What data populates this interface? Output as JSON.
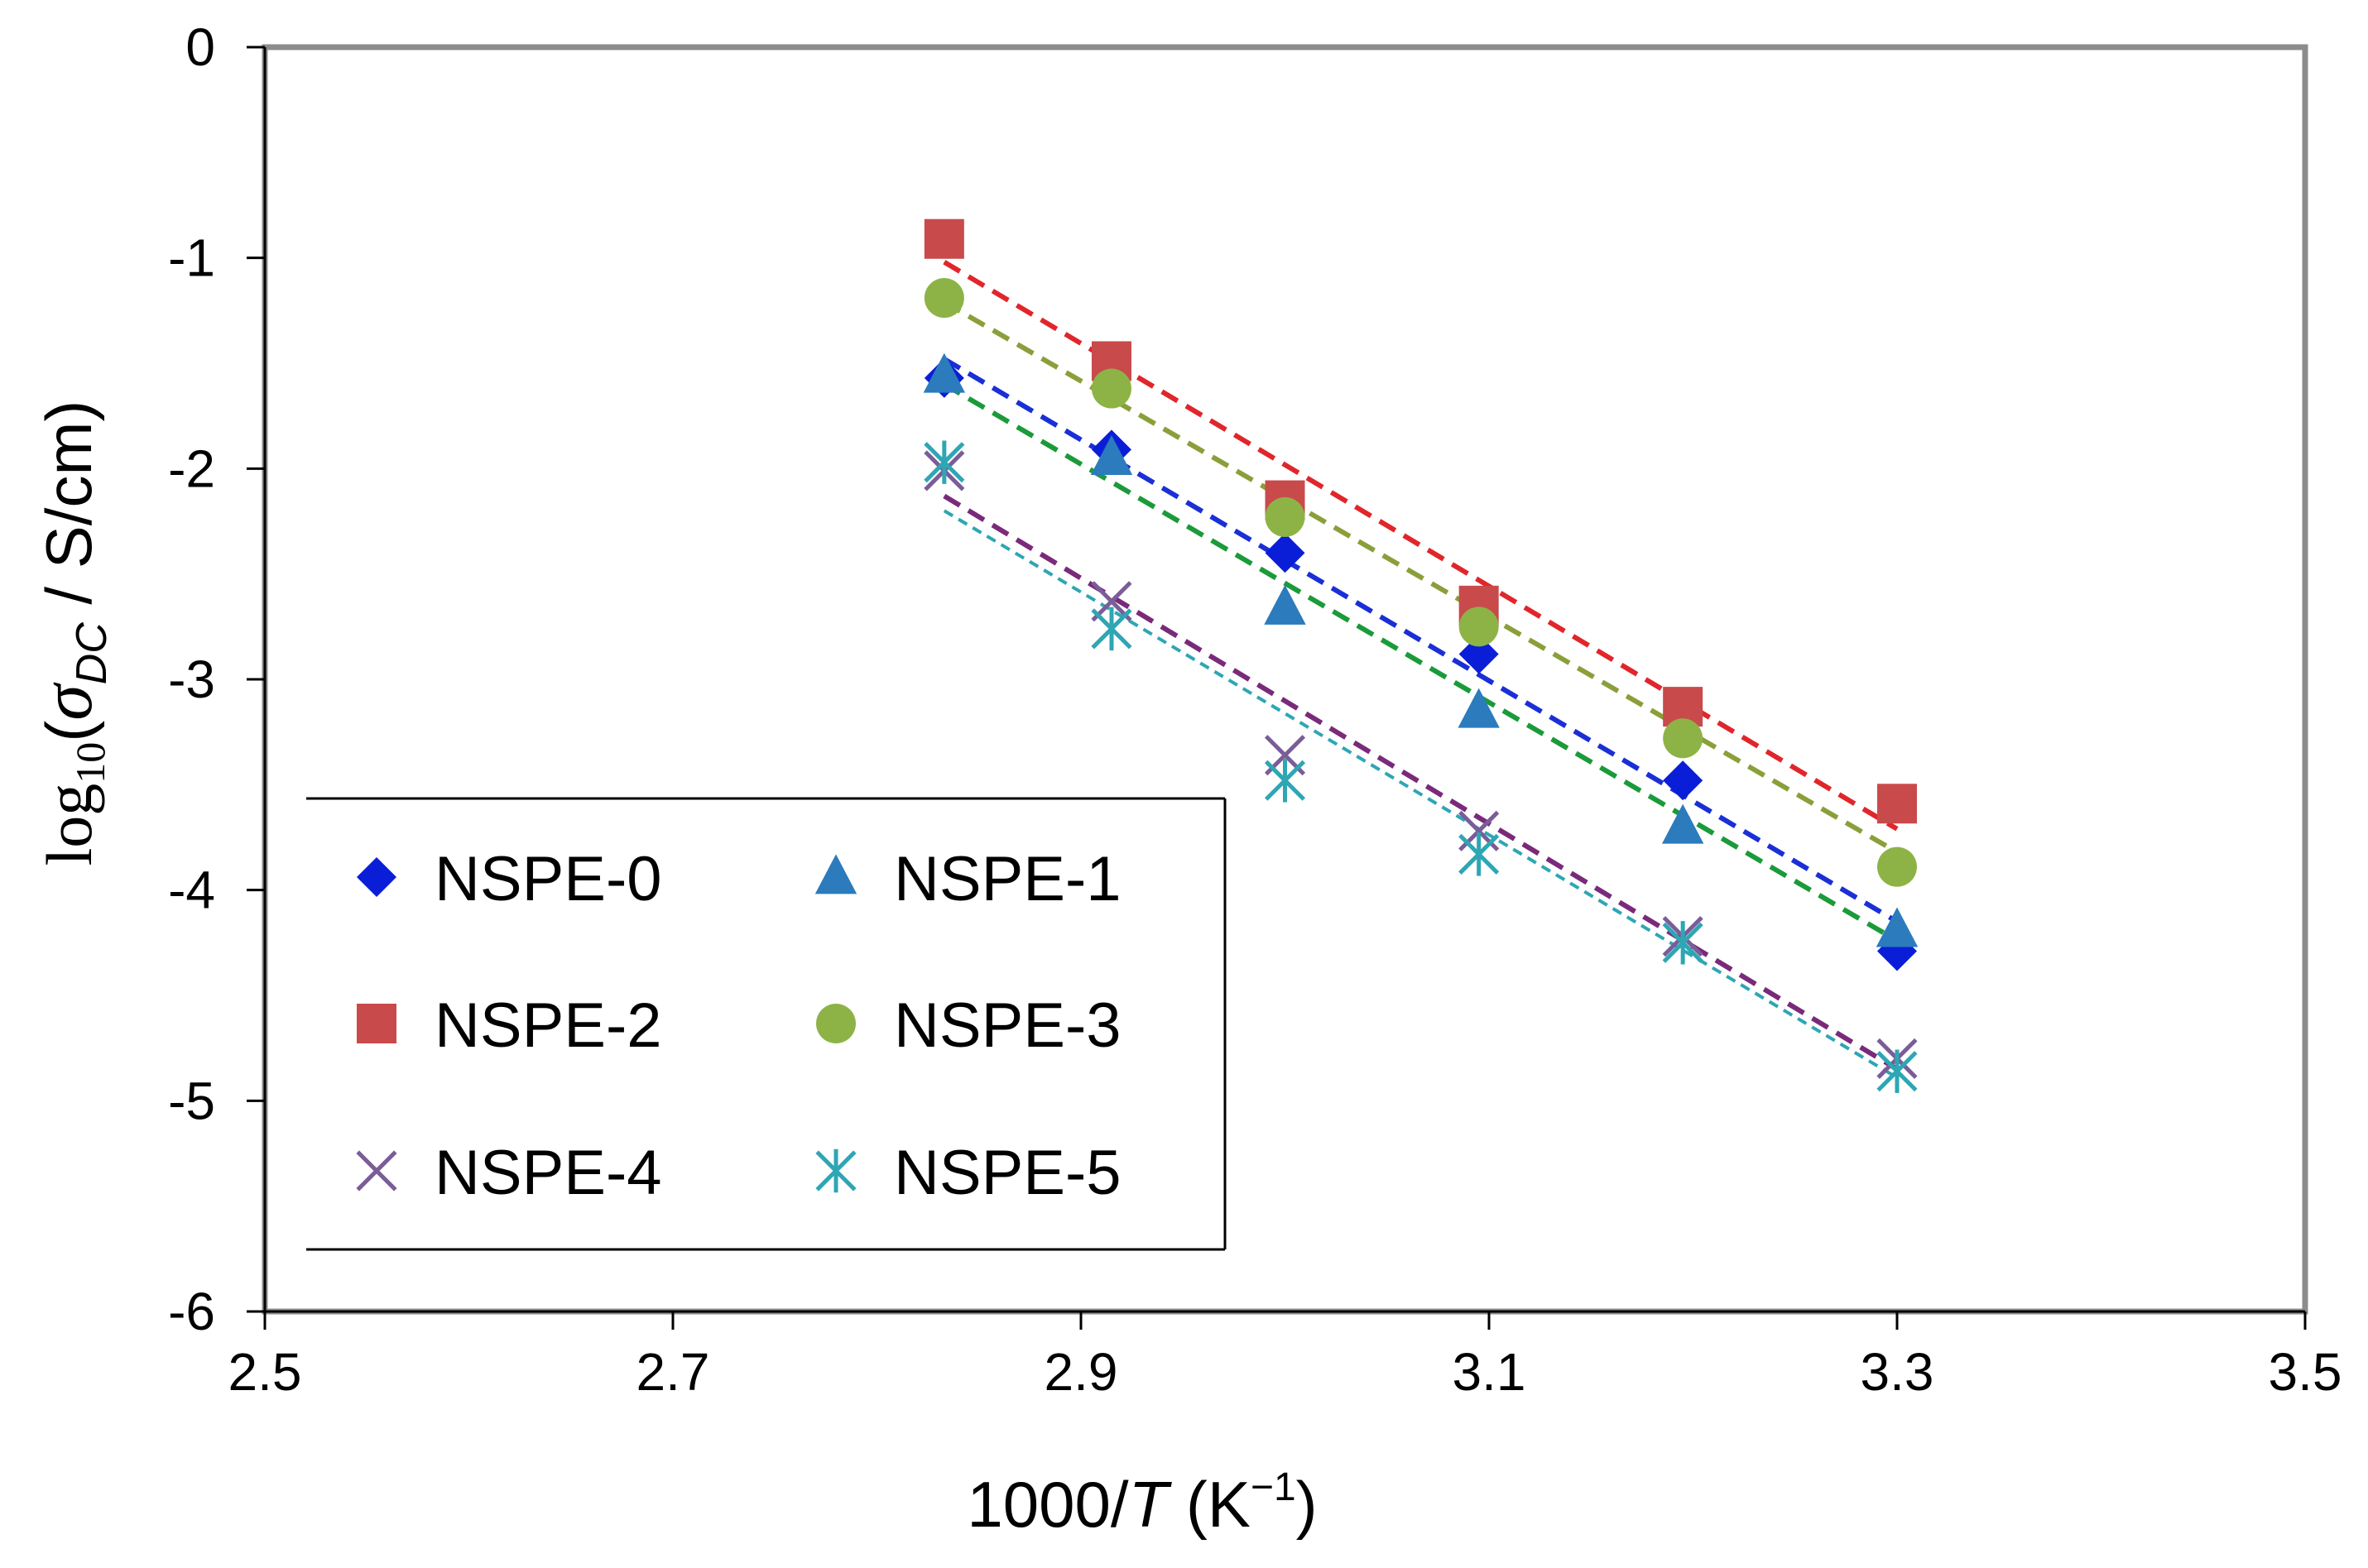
{
  "chart_data": {
    "type": "scatter",
    "title": "",
    "xlabel": {
      "prefix": "1000/",
      "var": "T",
      "suffix": " (K",
      "sup": "−1",
      "close": ")"
    },
    "ylabel": {
      "fn": "log",
      "sub": "10",
      "open": "(",
      "sigma": "σ",
      "sigma_sub": "DC",
      "unit": " / S/cm)"
    },
    "xlim": [
      2.5,
      3.5
    ],
    "ylim": [
      -6,
      0
    ],
    "xticks": [
      "2.5",
      "2.7",
      "2.9",
      "3.1",
      "3.3",
      "3.5"
    ],
    "yticks": [
      "0",
      "-1",
      "-2",
      "-3",
      "-4",
      "-5",
      "-6"
    ],
    "x": [
      2.833,
      2.915,
      3.0,
      3.095,
      3.195,
      3.3
    ],
    "grid": false,
    "legend_position": "lower-left",
    "series": [
      {
        "name": "NSPE-0",
        "marker": "diamond",
        "color": "#0a1ed8",
        "line_color": "#1a2fd6",
        "values": [
          -1.57,
          -1.91,
          -2.4,
          -2.88,
          -3.48,
          -4.29
        ],
        "fit": {
          "x": [
            2.833,
            3.3
          ],
          "y": [
            -1.48,
            -4.15
          ]
        }
      },
      {
        "name": "NSPE-1",
        "marker": "triangle",
        "color": "#2b7bbd",
        "line_color": "#1b9a3a",
        "values": [
          -1.56,
          -1.95,
          -2.66,
          -3.15,
          -3.7,
          -4.19
        ],
        "fit": {
          "x": [
            2.833,
            3.3
          ],
          "y": [
            -1.6,
            -4.24
          ]
        }
      },
      {
        "name": "NSPE-2",
        "marker": "square",
        "color": "#c94a4a",
        "line_color": "#e0262b",
        "values": [
          -0.91,
          -1.49,
          -2.15,
          -2.65,
          -3.13,
          -3.59
        ],
        "fit": {
          "x": [
            2.833,
            3.3
          ],
          "y": [
            -1.02,
            -3.71
          ]
        }
      },
      {
        "name": "NSPE-3",
        "marker": "circle",
        "color": "#8db346",
        "line_color": "#8a9f3a",
        "values": [
          -1.19,
          -1.62,
          -2.23,
          -2.75,
          -3.28,
          -3.89
        ],
        "fit": {
          "x": [
            2.833,
            3.3
          ],
          "y": [
            -1.21,
            -3.82
          ]
        }
      },
      {
        "name": "NSPE-4",
        "marker": "x",
        "color": "#7a5d98",
        "line_color": "#7a2a7a",
        "values": [
          -2.01,
          -2.63,
          -3.36,
          -3.72,
          -4.22,
          -4.8
        ],
        "fit": {
          "x": [
            2.833,
            3.3
          ],
          "y": [
            -2.13,
            -4.85
          ]
        }
      },
      {
        "name": "NSPE-5",
        "marker": "star",
        "color": "#2ea6b4",
        "line_color": "#2ea6b4",
        "values": [
          -1.97,
          -2.76,
          -3.48,
          -3.83,
          -4.25,
          -4.86
        ],
        "fit": {
          "x": [
            2.833,
            3.3
          ],
          "y": [
            -2.2,
            -4.89
          ]
        }
      }
    ]
  }
}
